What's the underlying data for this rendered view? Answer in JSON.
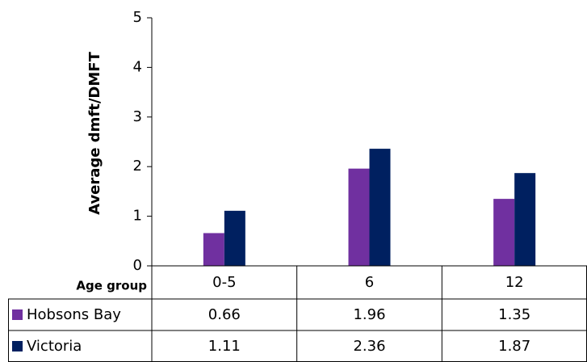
{
  "chart_data": {
    "type": "bar",
    "y_label": "Average dmft/DMFT",
    "x_label": "Age group",
    "categories": [
      "0-5",
      "6",
      "12"
    ],
    "series": [
      {
        "name": "Hobsons Bay",
        "color": "#7030a0",
        "values": [
          0.66,
          1.96,
          1.35
        ]
      },
      {
        "name": "Victoria",
        "color": "#002060",
        "values": [
          1.11,
          2.36,
          1.87
        ]
      }
    ],
    "ylim": [
      0,
      5
    ],
    "yticks": [
      0,
      1,
      2,
      3,
      4,
      5
    ]
  }
}
